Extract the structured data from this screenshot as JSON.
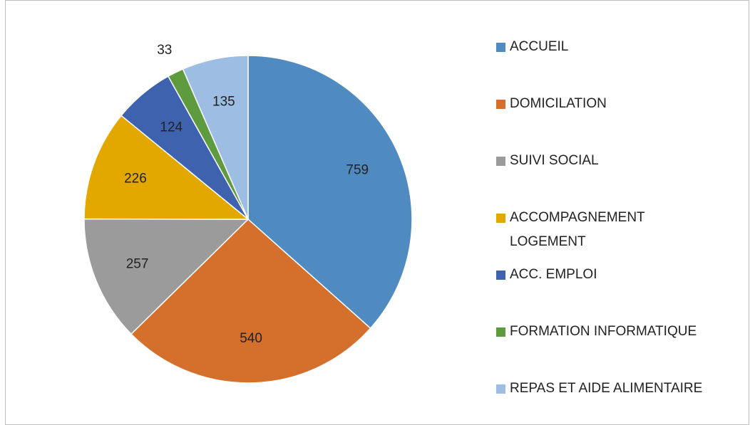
{
  "chart_data": {
    "type": "pie",
    "categories": [
      "ACCUEIL",
      "DOMICILATION",
      "SUIVI SOCIAL",
      "ACCOMPAGNEMENT LOGEMENT",
      "ACC. EMPLOI",
      "FORMATION INFORMATIQUE",
      "REPAS ET AIDE ALIMENTAIRE"
    ],
    "values": [
      759,
      540,
      257,
      226,
      124,
      33,
      135
    ],
    "colors": [
      "#4f8bc0",
      "#d46f2c",
      "#9b9b9b",
      "#e3a800",
      "#3f62ae",
      "#5d9b3e",
      "#9dbde3"
    ],
    "legend": "right"
  }
}
